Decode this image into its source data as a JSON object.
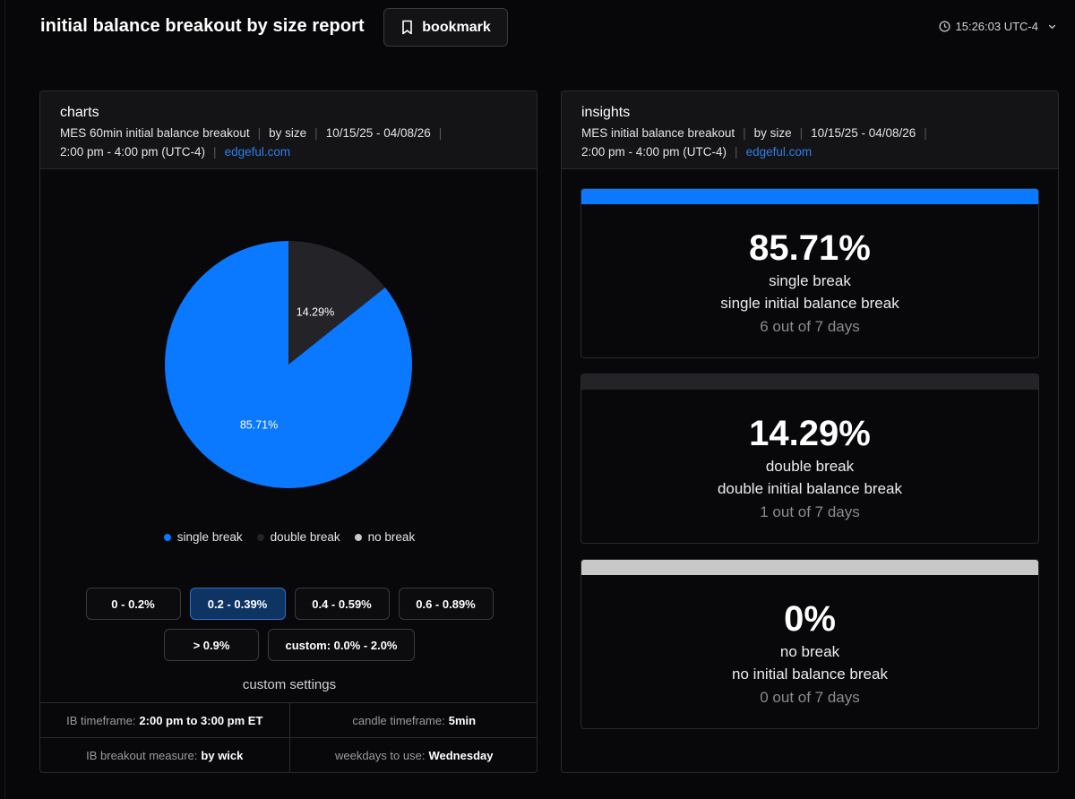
{
  "header": {
    "title": "initial balance breakout by size report",
    "bookmark_label": "bookmark",
    "clock": "15:26:03 UTC-4"
  },
  "charts_panel": {
    "title": "charts",
    "meta": [
      "MES 60min initial balance breakout",
      "by size",
      "10/15/25 - 04/08/26",
      "2:00 pm - 4:00 pm (UTC-4)"
    ],
    "link": "edgeful.com"
  },
  "insights_panel": {
    "title": "insights",
    "meta": [
      "MES initial balance breakout",
      "by size",
      "10/15/25 - 04/08/26",
      "2:00 pm - 4:00 pm (UTC-4)"
    ],
    "link": "edgeful.com"
  },
  "chart_data": {
    "type": "pie",
    "categories": [
      "single break",
      "double break",
      "no break"
    ],
    "values": [
      85.71,
      14.29,
      0
    ],
    "value_labels": [
      "85.71%",
      "14.29%",
      "0%"
    ],
    "colors": [
      "#0a78ff",
      "#232328",
      "#c8c8c8"
    ],
    "legend_position": "bottom"
  },
  "size_buttons": {
    "row1": [
      {
        "label": "0 - 0.2%",
        "active": false
      },
      {
        "label": "0.2 - 0.39%",
        "active": true
      },
      {
        "label": "0.4 - 0.59%",
        "active": false
      },
      {
        "label": "0.6 - 0.89%",
        "active": false
      }
    ],
    "row2": [
      {
        "label": "> 0.9%",
        "active": false
      },
      {
        "label": "custom: 0.0% - 2.0%",
        "active": false
      }
    ]
  },
  "custom_settings": {
    "title": "custom settings",
    "ib_timeframe_label": "IB timeframe:",
    "ib_timeframe_value": "2:00 pm to 3:00 pm ET",
    "candle_timeframe_label": "candle timeframe:",
    "candle_timeframe_value": "5min",
    "ib_breakout_measure_label": "IB breakout measure:",
    "ib_breakout_measure_value": "by wick",
    "weekdays_label": "weekdays to use:",
    "weekdays_value": "Wednesday"
  },
  "insights": [
    {
      "percent": "85.71%",
      "label": "single break",
      "desc": "single initial balance break",
      "days": "6 out of 7 days",
      "color": "#0a78ff"
    },
    {
      "percent": "14.29%",
      "label": "double break",
      "desc": "double initial balance break",
      "days": "1 out of 7 days",
      "color": "#232328"
    },
    {
      "percent": "0%",
      "label": "no break",
      "desc": "no initial balance break",
      "days": "0 out of 7 days",
      "color": "#c8c8c8"
    }
  ]
}
